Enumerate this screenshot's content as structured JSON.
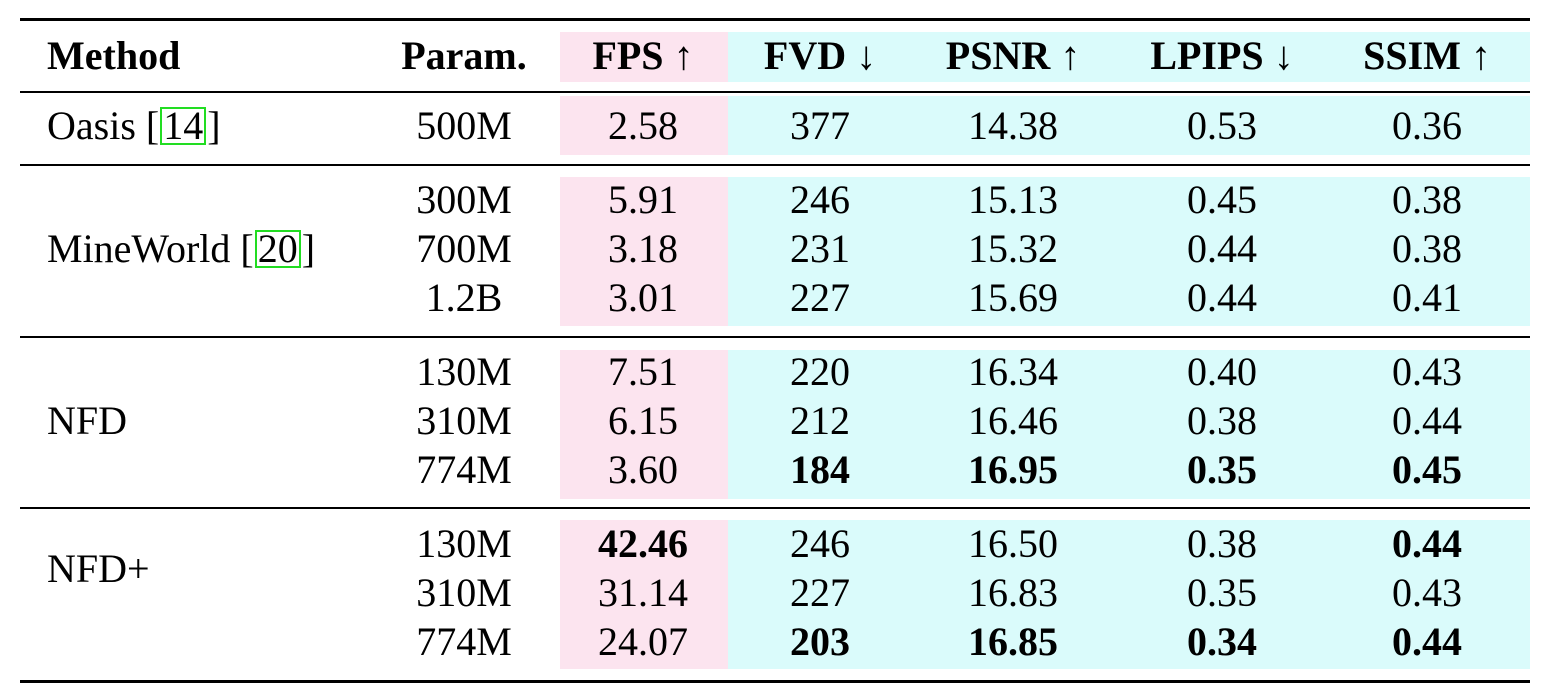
{
  "headers": [
    "Method",
    "Param.",
    "FPS ↑",
    "FVD ↓",
    "PSNR ↑",
    "LPIPS ↓",
    "SSIM ↑"
  ],
  "colors": {
    "fps_band": "#fce4ef",
    "metric_band": "#dafbfb",
    "citation_box": "#22dd22"
  },
  "groups": [
    {
      "method": "Oasis [",
      "cite": "14",
      "method_suffix": "]",
      "rows": [
        {
          "param": "500M",
          "fps": "2.58",
          "fvd": "377",
          "psnr": "14.38",
          "lpips": "0.53",
          "ssim": "0.36",
          "bold": []
        }
      ]
    },
    {
      "method": "MineWorld [",
      "cite": "20",
      "method_suffix": "]",
      "rows": [
        {
          "param": "300M",
          "fps": "5.91",
          "fvd": "246",
          "psnr": "15.13",
          "lpips": "0.45",
          "ssim": "0.38",
          "bold": []
        },
        {
          "param": "700M",
          "fps": "3.18",
          "fvd": "231",
          "psnr": "15.32",
          "lpips": "0.44",
          "ssim": "0.38",
          "bold": []
        },
        {
          "param": "1.2B",
          "fps": "3.01",
          "fvd": "227",
          "psnr": "15.69",
          "lpips": "0.44",
          "ssim": "0.41",
          "bold": []
        }
      ]
    },
    {
      "method": "NFD",
      "cite": "",
      "method_suffix": "",
      "rows": [
        {
          "param": "130M",
          "fps": "7.51",
          "fvd": "220",
          "psnr": "16.34",
          "lpips": "0.40",
          "ssim": "0.43",
          "bold": []
        },
        {
          "param": "310M",
          "fps": "6.15",
          "fvd": "212",
          "psnr": "16.46",
          "lpips": "0.38",
          "ssim": "0.44",
          "bold": []
        },
        {
          "param": "774M",
          "fps": "3.60",
          "fvd": "184",
          "psnr": "16.95",
          "lpips": "0.35",
          "ssim": "0.45",
          "bold": [
            "fvd",
            "psnr",
            "lpips",
            "ssim"
          ]
        }
      ]
    },
    {
      "method": "NFD+",
      "cite": "",
      "method_suffix": "",
      "rows": [
        {
          "param": "130M",
          "fps": "42.46",
          "fvd": "246",
          "psnr": "16.50",
          "lpips": "0.38",
          "ssim": "0.44",
          "bold": [
            "fps",
            "ssim"
          ]
        },
        {
          "param": "310M",
          "fps": "31.14",
          "fvd": "227",
          "psnr": "16.83",
          "lpips": "0.35",
          "ssim": "0.43",
          "bold": []
        },
        {
          "param": "774M",
          "fps": "24.07",
          "fvd": "203",
          "psnr": "16.85",
          "lpips": "0.34",
          "ssim": "0.44",
          "bold": [
            "fvd",
            "psnr",
            "lpips",
            "ssim"
          ]
        }
      ]
    }
  ]
}
